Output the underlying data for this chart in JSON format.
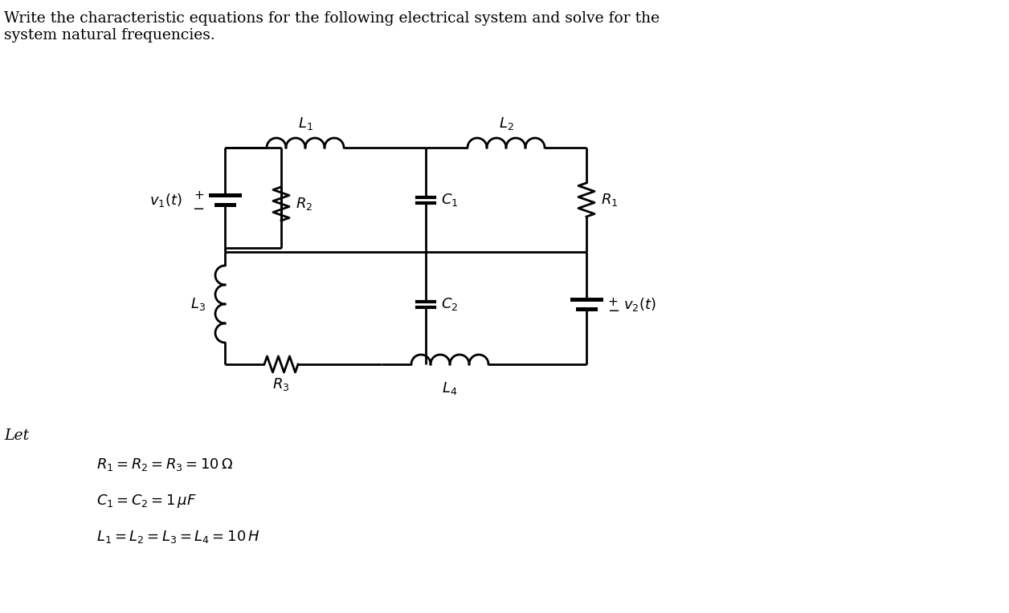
{
  "title_text": "Write the characteristic equations for the following electrical system and solve for the\nsystem natural frequencies.",
  "let_text": "Let",
  "eq1": "$R_1 = R_2 = R_3 = 10\\,\\Omega$",
  "eq2": "$C_1 = C_2 = 1\\,\\mu F$",
  "eq3": "$L_1 = L_2 = L_3 = L_4 = 10\\,H$",
  "bg_color": "#ffffff",
  "text_color": "#000000",
  "line_color": "#000000",
  "lw": 2.0
}
